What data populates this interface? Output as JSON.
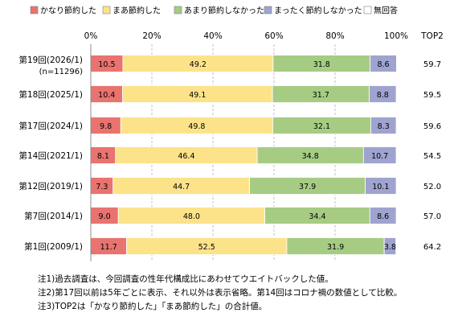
{
  "chart_data": {
    "type": "bar",
    "orientation": "horizontal",
    "stacked": true,
    "xlim": [
      0,
      100
    ],
    "x_ticks": [
      "0%",
      "20%",
      "40%",
      "60%",
      "80%",
      "100%"
    ],
    "extra_column_header": "TOP2",
    "categories": [
      {
        "label": "第19回(2026/1)",
        "sublabel": "(n=11296)"
      },
      {
        "label": "第18回(2025/1)"
      },
      {
        "label": "第17回(2024/1)"
      },
      {
        "label": "第14回(2021/1)"
      },
      {
        "label": "第12回(2019/1)"
      },
      {
        "label": "第7回(2014/1)"
      },
      {
        "label": "第1回(2009/1)"
      }
    ],
    "series": [
      {
        "name": "かなり節約した",
        "color": "#e8736f",
        "values": [
          10.5,
          10.4,
          9.8,
          8.1,
          7.3,
          9.0,
          11.7
        ]
      },
      {
        "name": "まあ節約した",
        "color": "#fce38a",
        "values": [
          49.2,
          49.1,
          49.8,
          46.4,
          44.7,
          48.0,
          52.5
        ]
      },
      {
        "name": "あまり節約しなかった",
        "color": "#a6cc84",
        "values": [
          31.8,
          31.7,
          32.1,
          34.8,
          37.9,
          34.4,
          31.9
        ]
      },
      {
        "name": "まったく節約しなかった",
        "color": "#9fa3d0",
        "values": [
          8.6,
          8.8,
          8.3,
          10.7,
          10.1,
          8.6,
          3.8
        ]
      },
      {
        "name": "無回答",
        "color": "#ffffff",
        "values": [
          null,
          null,
          null,
          null,
          null,
          null,
          null
        ]
      }
    ],
    "top2": [
      "59.7",
      "59.5",
      "59.6",
      "54.5",
      "52.0",
      "57.0",
      "64.2"
    ],
    "grid": true,
    "legend": "top"
  },
  "notes": [
    "注1)過去調査は、今回調査の性年代構成比にあわせてウエイトバックした値。",
    "注2)第17回以前は5年ごとに表示、それ以外は表示省略。第14回はコロナ禍の数値として比較。",
    "注3)TOP2は「かなり節約した」「まあ節約した」の合計値。"
  ]
}
